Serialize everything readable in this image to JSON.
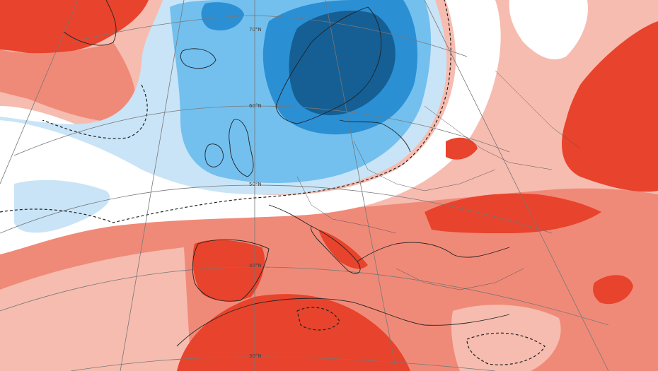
{
  "map": {
    "type": "temperature-anomaly-map",
    "region": "Europe and North Atlantic",
    "projection": "polar-stereographic",
    "latitude_labels": [
      "70°N",
      "60°N",
      "50°N",
      "40°N",
      "30°N"
    ],
    "palette": {
      "strong_warm": "#e8432c",
      "moderate_warm": "#f08a78",
      "weak_warm": "#f6bcb0",
      "neutral": "#ffffff",
      "weak_cold": "#c9e4f7",
      "moderate_cold": "#73c0ef",
      "strong_cold": "#2b8fd3",
      "extreme_cold": "#155f94",
      "coast": "#222222",
      "grid": "#777777"
    },
    "contours": {
      "style": "dashed"
    }
  }
}
